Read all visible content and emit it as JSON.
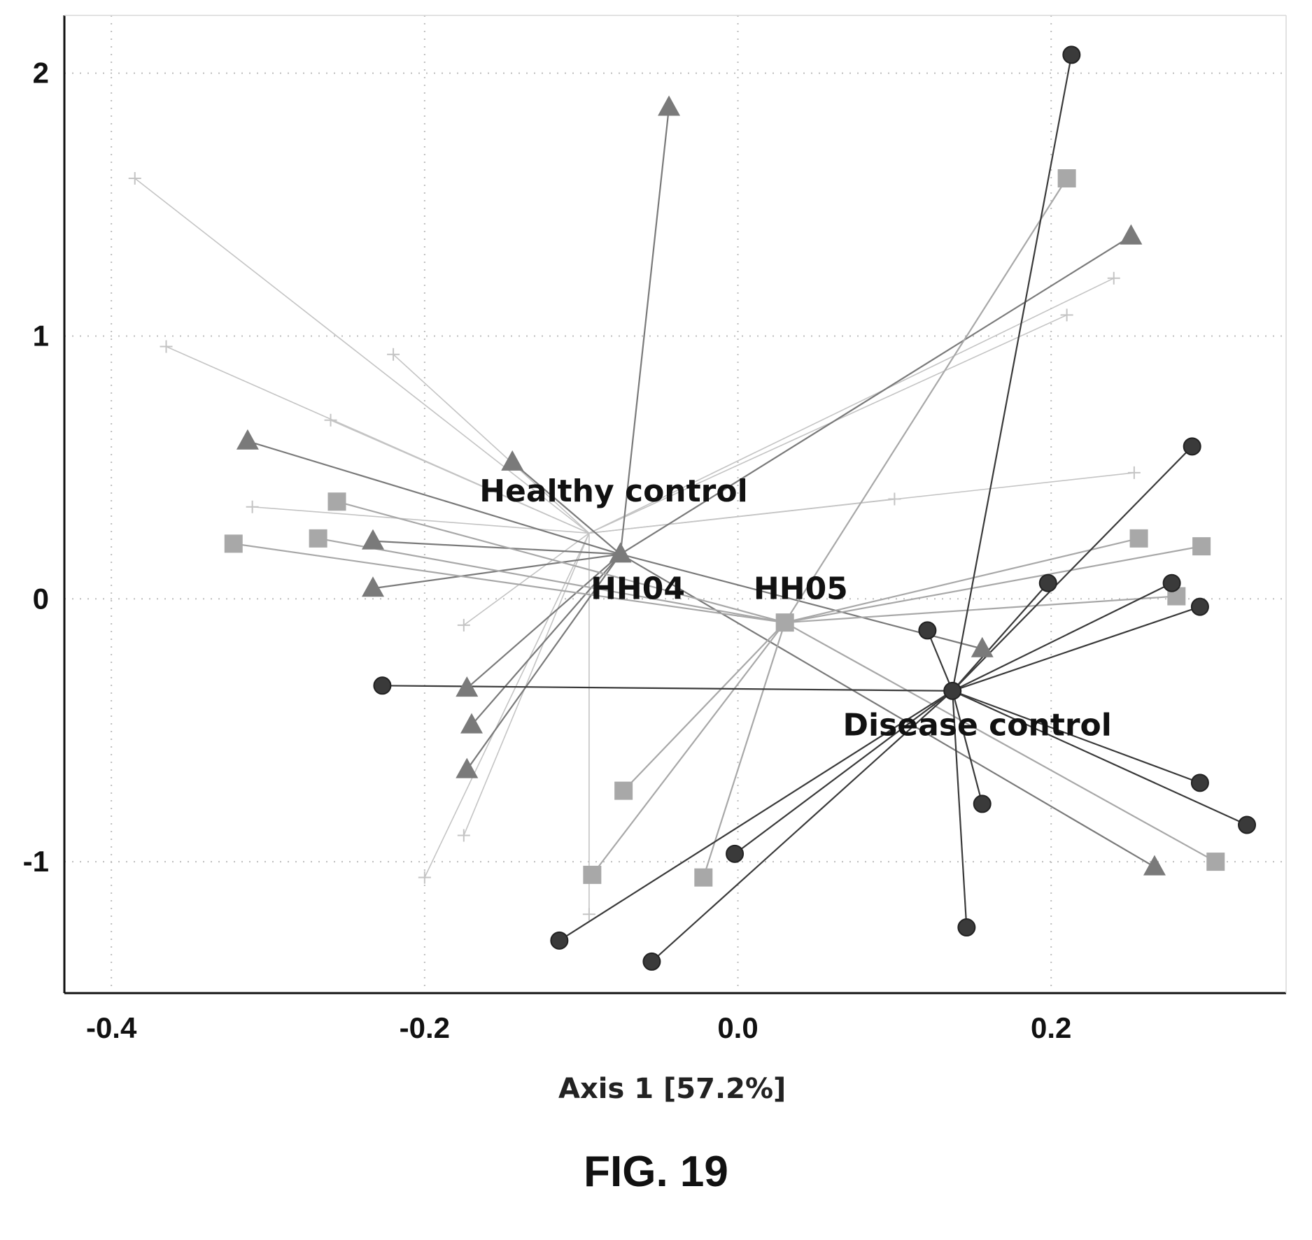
{
  "figure": {
    "caption": "FIG. 19"
  },
  "chart_data": {
    "type": "scatter",
    "xlabel": "Axis 1 [57.2%]",
    "ylabel": "",
    "xlim": [
      -0.43,
      0.35
    ],
    "ylim": [
      -1.5,
      2.22
    ],
    "xticks": [
      -0.4,
      -0.2,
      0.0,
      0.2
    ],
    "xtick_labels": [
      "-0.4",
      "-0.2",
      "0.0",
      "0.2"
    ],
    "yticks": [
      -1,
      0,
      1,
      2
    ],
    "ytick_labels": [
      "-1",
      "0",
      "1",
      "2"
    ],
    "grid": "dotted",
    "legend": "none",
    "colors": {
      "healthy": "#7a7a7a",
      "hh05": "#a8a8a8",
      "disease": "#3a3a3a",
      "ghost": "#c4c4c4",
      "axis": "#111111",
      "grid": "#bdbdbd"
    },
    "centroid_labels": [
      {
        "text": "Healthy control",
        "x": -0.165,
        "y": 0.37
      },
      {
        "text": "HH04",
        "x": -0.094,
        "y": 0.0
      },
      {
        "text": "HH05",
        "x": 0.01,
        "y": 0.0
      },
      {
        "text": "Disease control",
        "x": 0.067,
        "y": -0.52
      }
    ],
    "groups": [
      {
        "key": "healthy",
        "marker": "triangle",
        "centroid": {
          "x": -0.075,
          "y": 0.17
        },
        "points": [
          {
            "x": -0.044,
            "y": 1.87
          },
          {
            "x": -0.313,
            "y": 0.6
          },
          {
            "x": -0.144,
            "y": 0.52
          },
          {
            "x": -0.233,
            "y": 0.22
          },
          {
            "x": -0.233,
            "y": 0.04
          },
          {
            "x": -0.173,
            "y": -0.34
          },
          {
            "x": -0.17,
            "y": -0.48
          },
          {
            "x": -0.173,
            "y": -0.65
          },
          {
            "x": 0.156,
            "y": -0.19
          },
          {
            "x": 0.251,
            "y": 1.38
          },
          {
            "x": 0.266,
            "y": -1.02
          }
        ]
      },
      {
        "key": "hh05",
        "marker": "square",
        "centroid": {
          "x": 0.03,
          "y": -0.09
        },
        "points": [
          {
            "x": -0.322,
            "y": 0.21
          },
          {
            "x": -0.268,
            "y": 0.23
          },
          {
            "x": -0.256,
            "y": 0.37
          },
          {
            "x": -0.073,
            "y": -0.73
          },
          {
            "x": -0.093,
            "y": -1.05
          },
          {
            "x": -0.022,
            "y": -1.06
          },
          {
            "x": 0.21,
            "y": 1.6
          },
          {
            "x": 0.256,
            "y": 0.23
          },
          {
            "x": 0.28,
            "y": 0.01
          },
          {
            "x": 0.296,
            "y": 0.2
          },
          {
            "x": 0.305,
            "y": -1.0
          }
        ]
      },
      {
        "key": "disease",
        "marker": "circle",
        "centroid": {
          "x": 0.137,
          "y": -0.35
        },
        "points": [
          {
            "x": -0.227,
            "y": -0.33
          },
          {
            "x": -0.114,
            "y": -1.3
          },
          {
            "x": -0.055,
            "y": -1.38
          },
          {
            "x": -0.002,
            "y": -0.97
          },
          {
            "x": 0.121,
            "y": -0.12
          },
          {
            "x": 0.146,
            "y": -1.25
          },
          {
            "x": 0.156,
            "y": -0.78
          },
          {
            "x": 0.198,
            "y": 0.06
          },
          {
            "x": 0.213,
            "y": 2.07
          },
          {
            "x": 0.277,
            "y": 0.06
          },
          {
            "x": 0.29,
            "y": 0.58
          },
          {
            "x": 0.295,
            "y": -0.03
          },
          {
            "x": 0.295,
            "y": -0.7
          },
          {
            "x": 0.325,
            "y": -0.86
          }
        ]
      },
      {
        "key": "ghost",
        "marker": "none",
        "centroid": {
          "x": -0.095,
          "y": 0.25
        },
        "points": [
          {
            "x": -0.385,
            "y": 1.6
          },
          {
            "x": -0.365,
            "y": 0.96
          },
          {
            "x": -0.22,
            "y": 0.93
          },
          {
            "x": -0.26,
            "y": 0.68
          },
          {
            "x": -0.31,
            "y": 0.35
          },
          {
            "x": -0.175,
            "y": -0.1
          },
          {
            "x": -0.2,
            "y": -1.06
          },
          {
            "x": -0.175,
            "y": -0.9
          },
          {
            "x": -0.095,
            "y": -1.2
          },
          {
            "x": 0.1,
            "y": 0.38
          },
          {
            "x": 0.24,
            "y": 1.22
          },
          {
            "x": 0.21,
            "y": 1.08
          },
          {
            "x": 0.253,
            "y": 0.48
          }
        ]
      }
    ]
  }
}
